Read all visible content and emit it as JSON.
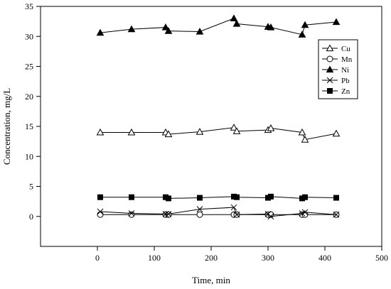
{
  "chart_data": {
    "type": "line",
    "title": "",
    "xlabel": "Time, min",
    "ylabel": "Concentration, mg/L",
    "xlim": [
      -100,
      500
    ],
    "ylim": [
      -5,
      35
    ],
    "xticks": [
      0,
      100,
      200,
      300,
      400,
      500
    ],
    "yticks": [
      0,
      5,
      10,
      15,
      20,
      25,
      30,
      35
    ],
    "grid": false,
    "legend_position": "top-right",
    "series": [
      {
        "name": "Cu",
        "marker": "triangle-open",
        "x": [
          5,
          60,
          120,
          125,
          180,
          240,
          245,
          300,
          305,
          360,
          365,
          420
        ],
        "y": [
          14.0,
          14.0,
          14.0,
          13.7,
          14.1,
          14.8,
          14.2,
          14.4,
          14.7,
          14.0,
          12.8,
          13.8
        ]
      },
      {
        "name": "Mn",
        "marker": "circle-open",
        "x": [
          5,
          60,
          120,
          125,
          180,
          240,
          245,
          300,
          305,
          360,
          365,
          420
        ],
        "y": [
          0.3,
          0.3,
          0.3,
          0.3,
          0.3,
          0.3,
          0.3,
          0.3,
          0.3,
          0.3,
          0.3,
          0.3
        ]
      },
      {
        "name": "Ni",
        "marker": "triangle-filled",
        "x": [
          5,
          60,
          120,
          125,
          180,
          240,
          245,
          300,
          305,
          360,
          365,
          420
        ],
        "y": [
          30.6,
          31.2,
          31.5,
          30.9,
          30.8,
          33.0,
          32.1,
          31.6,
          31.5,
          30.3,
          31.9,
          32.4
        ]
      },
      {
        "name": "Pb",
        "marker": "x",
        "x": [
          5,
          60,
          120,
          125,
          180,
          240,
          245,
          300,
          305,
          360,
          365,
          420
        ],
        "y": [
          0.8,
          0.5,
          0.4,
          0.4,
          1.2,
          1.5,
          0.3,
          0.4,
          0.0,
          0.5,
          0.7,
          0.3
        ]
      },
      {
        "name": "Zn",
        "marker": "square-filled",
        "x": [
          5,
          60,
          120,
          125,
          180,
          240,
          245,
          300,
          305,
          360,
          365,
          420
        ],
        "y": [
          3.2,
          3.2,
          3.2,
          3.0,
          3.1,
          3.3,
          3.2,
          3.1,
          3.3,
          3.0,
          3.2,
          3.1
        ]
      }
    ]
  }
}
